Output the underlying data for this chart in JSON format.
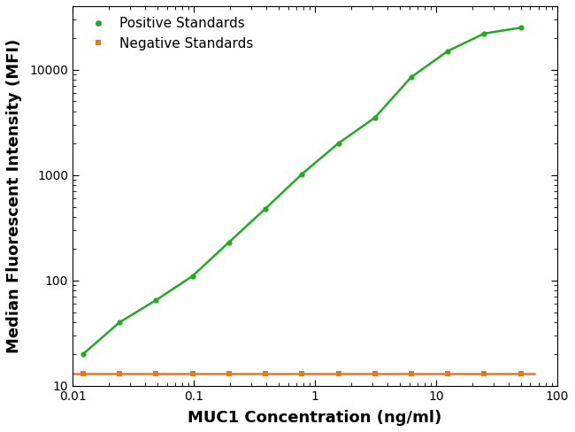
{
  "xlabel": "MUC1 Concentration (ng/ml)",
  "ylabel": "Median Fluorescent Intensity (MFI)",
  "xlim": [
    0.01,
    100
  ],
  "ylim": [
    10,
    40000
  ],
  "positive_color": "#22aa22",
  "negative_color": "#e87820",
  "positive_label": "Positive Standards",
  "negative_label": "Negative Standards",
  "positive_x": [
    0.0122,
    0.0244,
    0.0488,
    0.0977,
    0.195,
    0.391,
    0.781,
    1.563,
    3.125,
    6.25,
    12.5,
    25.0,
    50.0
  ],
  "positive_y": [
    20,
    40,
    65,
    110,
    230,
    480,
    1020,
    2000,
    3500,
    8500,
    15000,
    22000,
    25000
  ],
  "negative_x": [
    0.0122,
    0.0244,
    0.0488,
    0.0977,
    0.195,
    0.391,
    0.781,
    1.563,
    3.125,
    6.25,
    12.5,
    25.0,
    50.0
  ],
  "negative_y": [
    13,
    13,
    13,
    13,
    13,
    13,
    13,
    13,
    13,
    13,
    13,
    13,
    13
  ],
  "background_color": "#ffffff",
  "marker_size": 4.5,
  "line_width": 1.8,
  "legend_fontsize": 11,
  "axis_label_fontsize": 13,
  "tick_label_fontsize": 10
}
